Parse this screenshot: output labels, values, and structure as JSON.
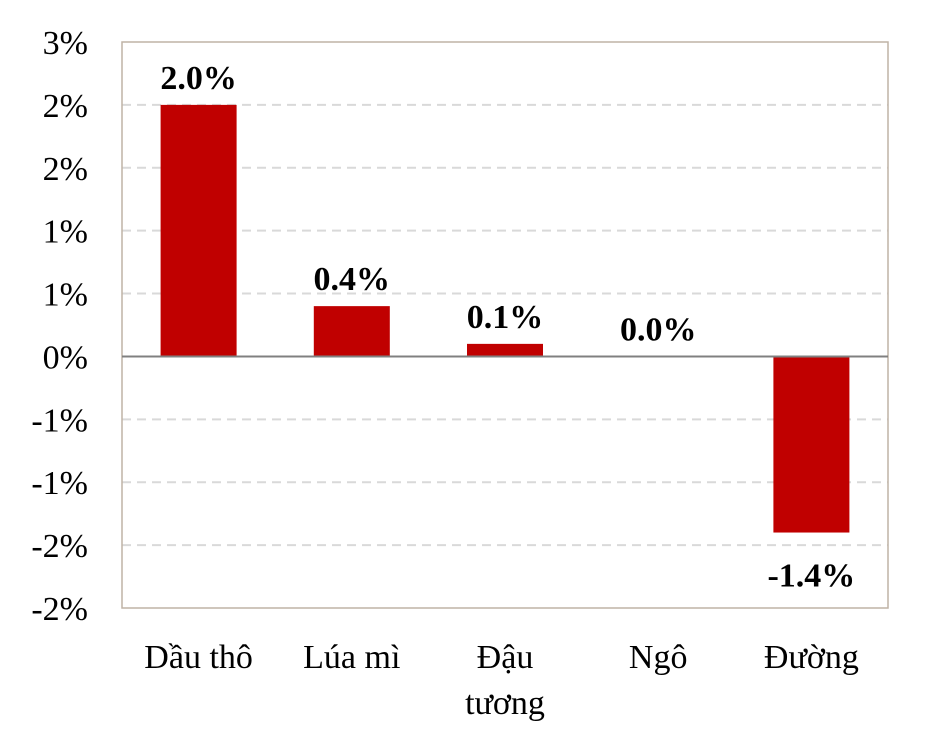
{
  "chart_data": {
    "type": "bar",
    "title": "",
    "xlabel": "",
    "ylabel": "",
    "categories": [
      [
        "Dầu thô"
      ],
      [
        "Lúa mì"
      ],
      [
        "Đậu",
        "tương"
      ],
      [
        "Ngô"
      ],
      [
        "Đường"
      ]
    ],
    "values": [
      2.0,
      0.4,
      0.1,
      0.0,
      -1.4
    ],
    "data_labels": [
      "2.0%",
      "0.4%",
      "0.1%",
      "0.0%",
      "-1.4%"
    ],
    "ylim": [
      -2.0,
      2.5
    ],
    "yticks": [
      2.5,
      2.0,
      1.5,
      1.0,
      0.5,
      0.0,
      -0.5,
      -1.0,
      -1.5,
      -2.0
    ],
    "ytick_labels": [
      "3%",
      "2%",
      "2%",
      "1%",
      "1%",
      "0%",
      "-1%",
      "-1%",
      "-2%",
      "-2%"
    ],
    "grid": true,
    "legend": "none",
    "colors": {
      "bar": "#C00000",
      "grid": "#D9D9D9",
      "zero_line": "#808080",
      "frame": "#BFB3A6"
    }
  }
}
